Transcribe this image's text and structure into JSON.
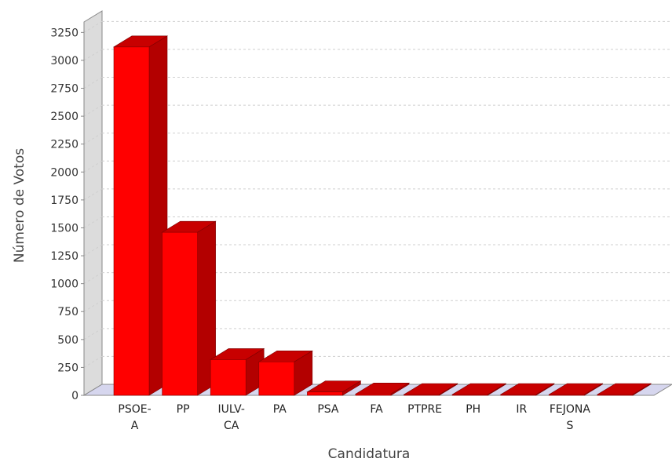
{
  "chart_data": {
    "type": "bar",
    "style": "3d",
    "title": "",
    "xlabel": "Candidatura",
    "ylabel": "Número de Votos",
    "ylim": [
      0,
      3400
    ],
    "yticks": [
      0,
      250,
      500,
      750,
      1000,
      1250,
      1500,
      1750,
      2000,
      2250,
      2500,
      2750,
      3000,
      3250
    ],
    "grid": true,
    "legend": "none",
    "categories": [
      {
        "line1": "PSOE-",
        "line2": "A"
      },
      {
        "line1": "PP",
        "line2": ""
      },
      {
        "line1": "IULV-",
        "line2": "CA"
      },
      {
        "line1": "PA",
        "line2": ""
      },
      {
        "line1": "PSA",
        "line2": ""
      },
      {
        "line1": "FA",
        "line2": ""
      },
      {
        "line1": "PTPRE",
        "line2": ""
      },
      {
        "line1": "PH",
        "line2": ""
      },
      {
        "line1": "IR",
        "line2": ""
      },
      {
        "line1": "FEJONA",
        "line2": "S"
      },
      {
        "line1": "",
        "line2": ""
      }
    ],
    "values": [
      3120,
      1460,
      320,
      300,
      30,
      12,
      5,
      3,
      3,
      2,
      2
    ],
    "colors": {
      "front": "#ff0000",
      "side": "#b30000",
      "top": "#c80000",
      "wall": "#dcdcdc",
      "floor": "#d6d6ee",
      "grid": "#cfcfcf",
      "axis": "#888888"
    }
  }
}
